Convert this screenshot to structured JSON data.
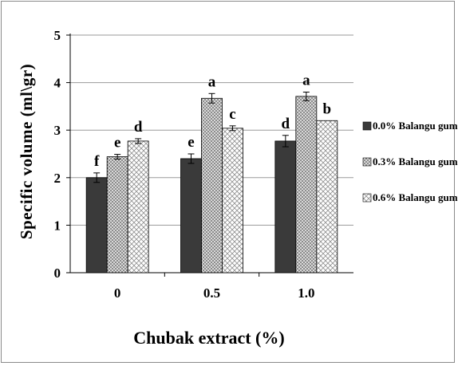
{
  "chart_data": {
    "type": "bar",
    "categories": [
      "0",
      "0.5",
      "1.0"
    ],
    "series": [
      {
        "name": "0.0% Balangu gum",
        "values": [
          2.0,
          2.4,
          2.77
        ],
        "errors": [
          0.1,
          0.1,
          0.12
        ],
        "letters": [
          "f",
          "e",
          "d"
        ],
        "fill": "dark"
      },
      {
        "name": "0.3% Balangu gum",
        "values": [
          2.44,
          3.67,
          3.71
        ],
        "errors": [
          0.05,
          0.1,
          0.09
        ],
        "letters": [
          "e",
          "a",
          "a"
        ],
        "fill": "dots"
      },
      {
        "name": "0.6% Balangu gum",
        "values": [
          2.77,
          3.04,
          3.2
        ],
        "errors": [
          0.05,
          0.05,
          0.0
        ],
        "letters": [
          "d",
          "c",
          "b"
        ],
        "fill": "hatch"
      }
    ],
    "xlabel": "Chubak extract (%)",
    "ylabel": "Specific volume (ml\\gr)",
    "ylim": [
      0,
      5
    ],
    "yticks": [
      "0",
      "1",
      "2",
      "3",
      "4",
      "5"
    ],
    "grid": true,
    "legend_position": "right"
  },
  "colors": {
    "dark": "#3a3a3a",
    "dot_bg": "#d9d9d9",
    "dot_fg": "#555555",
    "hatch_bg": "#ffffff",
    "hatch_fg": "#777777",
    "grid": "#9a9a9a"
  }
}
